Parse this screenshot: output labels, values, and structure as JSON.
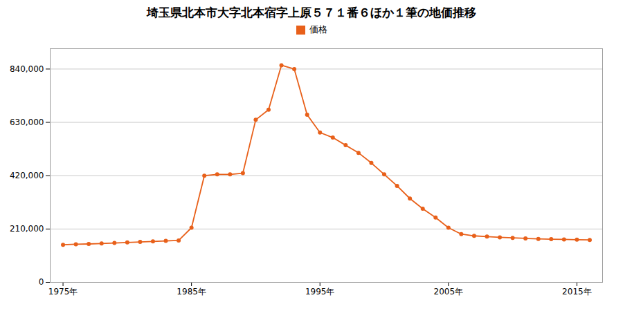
{
  "chart_data": {
    "type": "line",
    "title": "埼玉県北本市大字北本宿字上原５７１番６ほか１筆の地価推移",
    "x": [
      1975,
      1976,
      1977,
      1978,
      1979,
      1980,
      1981,
      1982,
      1983,
      1984,
      1985,
      1986,
      1987,
      1988,
      1989,
      1990,
      1991,
      1992,
      1993,
      1994,
      1995,
      1996,
      1997,
      1998,
      1999,
      2000,
      2001,
      2002,
      2003,
      2004,
      2005,
      2006,
      2007,
      2008,
      2009,
      2010,
      2011,
      2012,
      2013,
      2014,
      2015,
      2016
    ],
    "series": [
      {
        "name": "価格",
        "color": "#E8601A",
        "values": [
          148000,
          150000,
          151000,
          153000,
          155000,
          157000,
          159000,
          161000,
          163000,
          165000,
          215000,
          420000,
          425000,
          425000,
          430000,
          640000,
          680000,
          855000,
          840000,
          660000,
          590000,
          570000,
          540000,
          510000,
          470000,
          425000,
          380000,
          330000,
          290000,
          255000,
          215000,
          190000,
          183000,
          180000,
          177000,
          175000,
          173000,
          171000,
          170000,
          169000,
          168000,
          167000
        ]
      }
    ],
    "xlim": [
      1974,
      2017
    ],
    "ylim": [
      0,
      920000
    ],
    "xticks": [
      {
        "value": 1975,
        "label": "1975年"
      },
      {
        "value": 1985,
        "label": "1985年"
      },
      {
        "value": 1995,
        "label": "1995年"
      },
      {
        "value": 2005,
        "label": "2005年"
      },
      {
        "value": 2015,
        "label": "2015年"
      }
    ],
    "yticks": [
      0,
      {
        "value": 210000,
        "label": "210,000"
      },
      {
        "value": 420000,
        "label": "420,000"
      },
      {
        "value": 630000,
        "label": "630,000"
      },
      {
        "value": 840000,
        "label": "840,000"
      }
    ],
    "grid": true,
    "legend": "top",
    "marker": "circle"
  }
}
